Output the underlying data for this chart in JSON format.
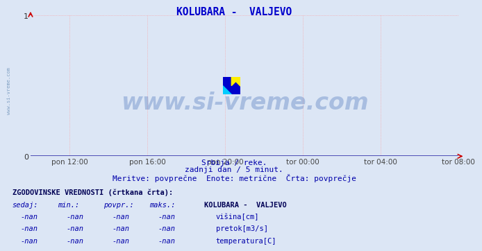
{
  "title": "KOLUBARA -  VALJEVO",
  "title_color": "#0000cc",
  "bg_color": "#dce6f5",
  "plot_bg_color": "#dce6f5",
  "grid_color": "#ff9999",
  "xlim": [
    0,
    1
  ],
  "ylim": [
    0,
    1
  ],
  "xtick_labels": [
    "pon 12:00",
    "pon 16:00",
    "pon 20:00",
    "tor 00:00",
    "tor 04:00",
    "tor 08:00"
  ],
  "xtick_positions": [
    0.0909,
    0.2727,
    0.4545,
    0.6364,
    0.8182,
    1.0
  ],
  "watermark_text": "www.si-vreme.com",
  "watermark_color": "#2255aa",
  "watermark_alpha": 0.28,
  "sidebar_text": "www.si-vreme.com",
  "sidebar_color": "#336699",
  "subtitle1": "Srbija / reke.",
  "subtitle2": "zadnji dan / 5 minut.",
  "subtitle3": "Meritve: povprečne  Enote: metrične  Črta: povprečje",
  "subtitle_color": "#0000aa",
  "table_header": "ZGODOVINSKE VREDNOSTI (črtkana črta):",
  "table_col_headers": [
    "sedaj:",
    "min.:",
    "povpr.:",
    "maks.:"
  ],
  "table_station": "KOLUBARA -  VALJEVO",
  "table_rows": [
    {
      "color": "#0000cc",
      "label": "višina[cm]"
    },
    {
      "color": "#00aa00",
      "label": "pretok[m3/s]"
    },
    {
      "color": "#cc0000",
      "label": "temperatura[C]"
    }
  ]
}
